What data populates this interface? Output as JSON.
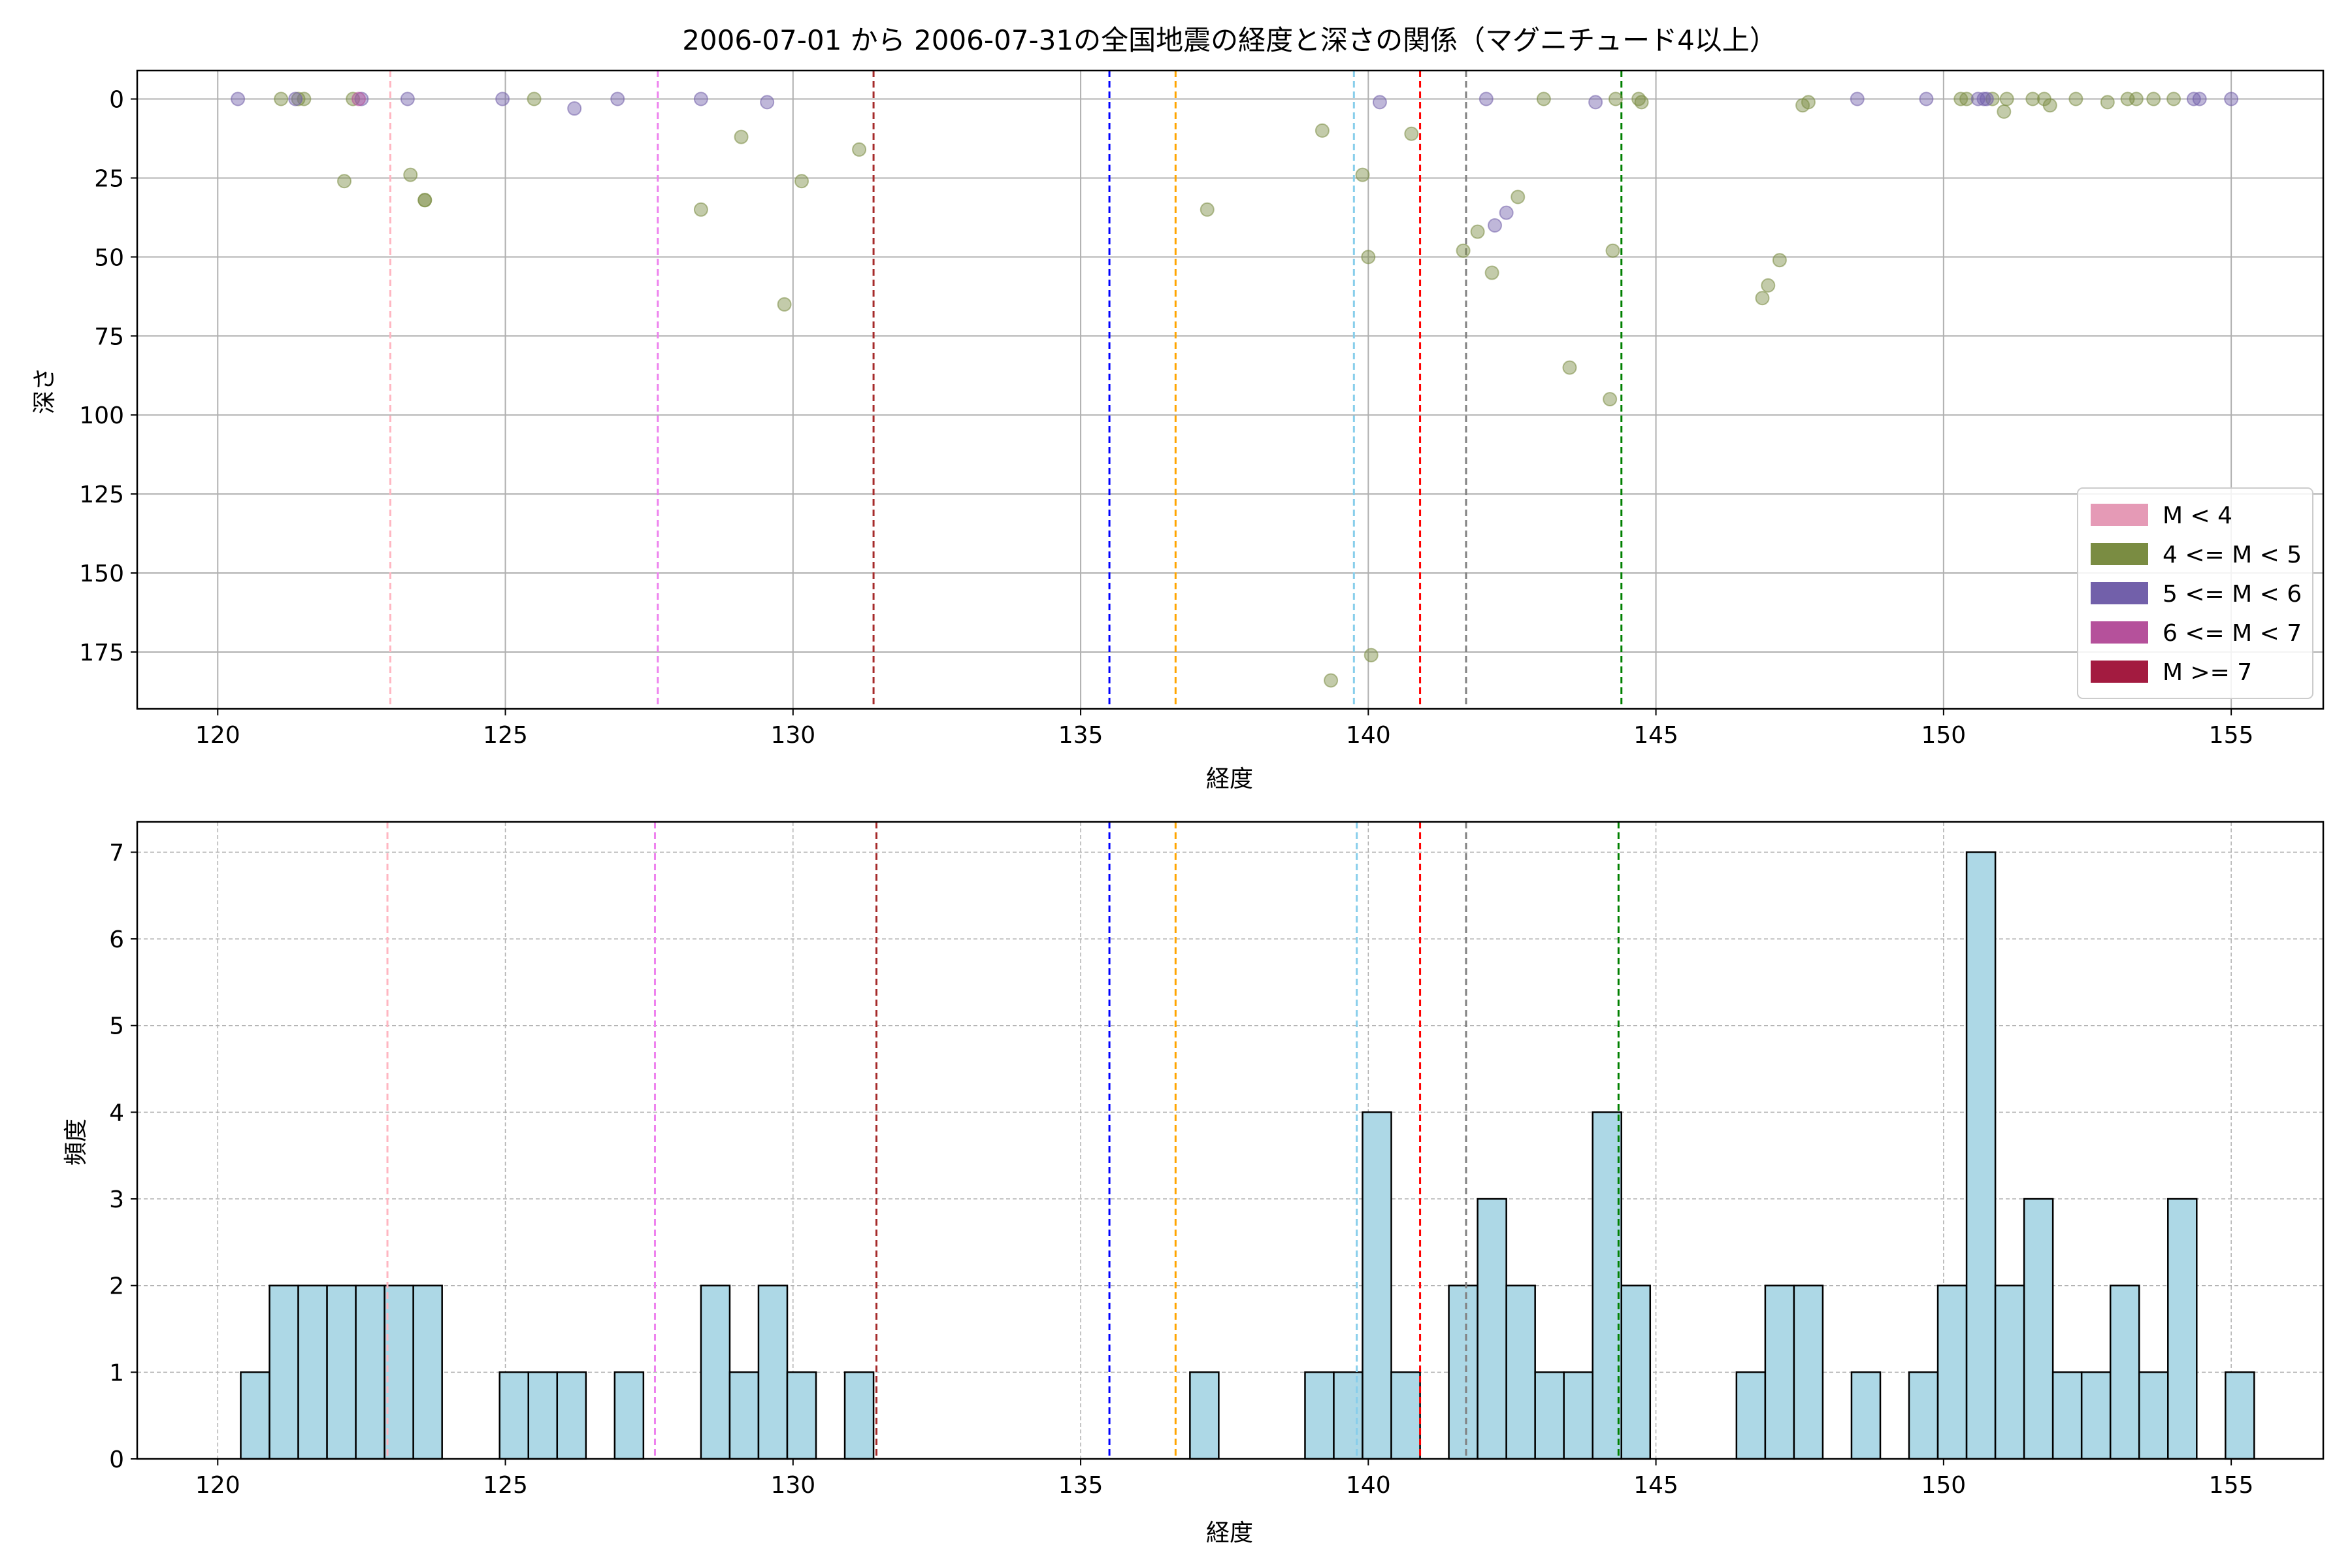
{
  "title": "2006-07-01 から 2006-07-31の全国地震の経度と深さの関係（マグニチュード4以上）",
  "chart_data": [
    {
      "type": "scatter",
      "xlabel": "経度",
      "ylabel": "深さ",
      "xlim": [
        118.6,
        156.6
      ],
      "ylim": [
        193,
        -9
      ],
      "y_inverted": true,
      "grid": true,
      "xticks": [
        120,
        125,
        130,
        135,
        140,
        145,
        150,
        155
      ],
      "yticks": [
        0,
        25,
        50,
        75,
        100,
        125,
        150,
        175
      ],
      "legend_position": "lower-right",
      "legend": [
        {
          "label": "M < 4",
          "color": "#e59ab6"
        },
        {
          "label": "4 <= M < 5",
          "color": "#7a8c42"
        },
        {
          "label": "5 <= M < 6",
          "color": "#7260aa"
        },
        {
          "label": "6 <= M < 7",
          "color": "#b5519b"
        },
        {
          "label": "M >= 7",
          "color": "#a31b40"
        }
      ],
      "vlines": [
        {
          "x": 123.0,
          "color": "#ffb6c1"
        },
        {
          "x": 127.65,
          "color": "#ee82ee"
        },
        {
          "x": 131.4,
          "color": "#a52a2a"
        },
        {
          "x": 135.5,
          "color": "#0000ff"
        },
        {
          "x": 136.65,
          "color": "#ffa500"
        },
        {
          "x": 139.75,
          "color": "#87ceeb"
        },
        {
          "x": 140.9,
          "color": "#ff0000"
        },
        {
          "x": 141.7,
          "color": "#808080"
        },
        {
          "x": 144.4,
          "color": "#008000"
        }
      ],
      "series": [
        {
          "name": "4 <= M < 5",
          "color": "#7a8c42",
          "points": [
            [
              121.1,
              0
            ],
            [
              121.4,
              0
            ],
            [
              121.5,
              0
            ],
            [
              122.2,
              26
            ],
            [
              122.35,
              0
            ],
            [
              123.35,
              24
            ],
            [
              123.6,
              32
            ],
            [
              123.6,
              32
            ],
            [
              125.5,
              0
            ],
            [
              128.4,
              35
            ],
            [
              129.1,
              12
            ],
            [
              129.85,
              65
            ],
            [
              130.15,
              26
            ],
            [
              131.15,
              16
            ],
            [
              137.2,
              35
            ],
            [
              139.2,
              10
            ],
            [
              139.35,
              184
            ],
            [
              139.9,
              24
            ],
            [
              140.0,
              50
            ],
            [
              140.05,
              176
            ],
            [
              140.75,
              11
            ],
            [
              141.65,
              48
            ],
            [
              141.9,
              42
            ],
            [
              142.15,
              55
            ],
            [
              142.6,
              31
            ],
            [
              143.05,
              0
            ],
            [
              143.5,
              85
            ],
            [
              144.2,
              95
            ],
            [
              144.25,
              48
            ],
            [
              144.3,
              0
            ],
            [
              144.7,
              0
            ],
            [
              144.75,
              1
            ],
            [
              146.85,
              63
            ],
            [
              146.95,
              59
            ],
            [
              147.15,
              51
            ],
            [
              147.55,
              2
            ],
            [
              147.65,
              1
            ],
            [
              150.3,
              0
            ],
            [
              150.4,
              0
            ],
            [
              150.85,
              0
            ],
            [
              151.05,
              4
            ],
            [
              151.1,
              0
            ],
            [
              151.55,
              0
            ],
            [
              151.75,
              0
            ],
            [
              151.85,
              2
            ],
            [
              152.3,
              0
            ],
            [
              152.85,
              1
            ],
            [
              153.2,
              0
            ],
            [
              153.35,
              0
            ],
            [
              153.65,
              0
            ],
            [
              154.0,
              0
            ]
          ]
        },
        {
          "name": "5 <= M < 6",
          "color": "#7260aa",
          "points": [
            [
              120.35,
              0
            ],
            [
              121.35,
              0
            ],
            [
              122.5,
              0
            ],
            [
              123.3,
              0
            ],
            [
              124.95,
              0
            ],
            [
              126.2,
              3
            ],
            [
              126.95,
              0
            ],
            [
              128.4,
              0
            ],
            [
              129.55,
              1
            ],
            [
              140.2,
              1
            ],
            [
              142.05,
              0
            ],
            [
              142.2,
              40
            ],
            [
              142.4,
              36
            ],
            [
              143.95,
              1
            ],
            [
              148.5,
              0
            ],
            [
              149.7,
              0
            ],
            [
              150.6,
              0
            ],
            [
              150.7,
              0
            ],
            [
              150.75,
              0
            ],
            [
              154.35,
              0
            ],
            [
              154.45,
              0
            ],
            [
              155.0,
              0
            ]
          ]
        },
        {
          "name": "6 <= M < 7",
          "color": "#b5519b",
          "points": [
            [
              122.45,
              0
            ]
          ]
        }
      ]
    },
    {
      "type": "bar",
      "xlabel": "経度",
      "ylabel": "頻度",
      "xlim": [
        118.6,
        156.6
      ],
      "ylim": [
        0,
        7.35
      ],
      "grid": true,
      "bin_width": 0.5,
      "xticks": [
        120,
        125,
        130,
        135,
        140,
        145,
        150,
        155
      ],
      "yticks": [
        0,
        1,
        2,
        3,
        4,
        5,
        6,
        7
      ],
      "bar_color": "#add8e6",
      "vlines": [
        {
          "x": 122.95,
          "color": "#ffb6c1"
        },
        {
          "x": 127.6,
          "color": "#ee82ee"
        },
        {
          "x": 131.45,
          "color": "#a52a2a"
        },
        {
          "x": 135.5,
          "color": "#0000ff"
        },
        {
          "x": 136.65,
          "color": "#ffa500"
        },
        {
          "x": 139.8,
          "color": "#87ceeb"
        },
        {
          "x": 140.9,
          "color": "#ff0000"
        },
        {
          "x": 141.7,
          "color": "#808080"
        },
        {
          "x": 144.35,
          "color": "#008000"
        }
      ],
      "bars": [
        [
          120.4,
          1
        ],
        [
          120.9,
          2
        ],
        [
          121.4,
          2
        ],
        [
          121.9,
          2
        ],
        [
          122.4,
          2
        ],
        [
          122.9,
          2
        ],
        [
          123.4,
          2
        ],
        [
          124.9,
          1
        ],
        [
          125.4,
          1
        ],
        [
          125.9,
          1
        ],
        [
          126.9,
          1
        ],
        [
          128.4,
          2
        ],
        [
          128.9,
          1
        ],
        [
          129.4,
          2
        ],
        [
          129.9,
          1
        ],
        [
          130.9,
          1
        ],
        [
          136.9,
          1
        ],
        [
          138.9,
          1
        ],
        [
          139.4,
          1
        ],
        [
          139.9,
          4
        ],
        [
          140.4,
          1
        ],
        [
          141.4,
          2
        ],
        [
          141.9,
          3
        ],
        [
          142.4,
          2
        ],
        [
          142.9,
          1
        ],
        [
          143.4,
          1
        ],
        [
          143.9,
          4
        ],
        [
          144.4,
          2
        ],
        [
          146.4,
          1
        ],
        [
          146.9,
          2
        ],
        [
          147.4,
          2
        ],
        [
          148.4,
          1
        ],
        [
          149.4,
          1
        ],
        [
          149.9,
          2
        ],
        [
          150.4,
          7
        ],
        [
          150.9,
          2
        ],
        [
          151.4,
          3
        ],
        [
          151.9,
          1
        ],
        [
          152.4,
          1
        ],
        [
          152.9,
          2
        ],
        [
          153.4,
          1
        ],
        [
          153.9,
          3
        ],
        [
          154.9,
          1
        ]
      ]
    }
  ]
}
